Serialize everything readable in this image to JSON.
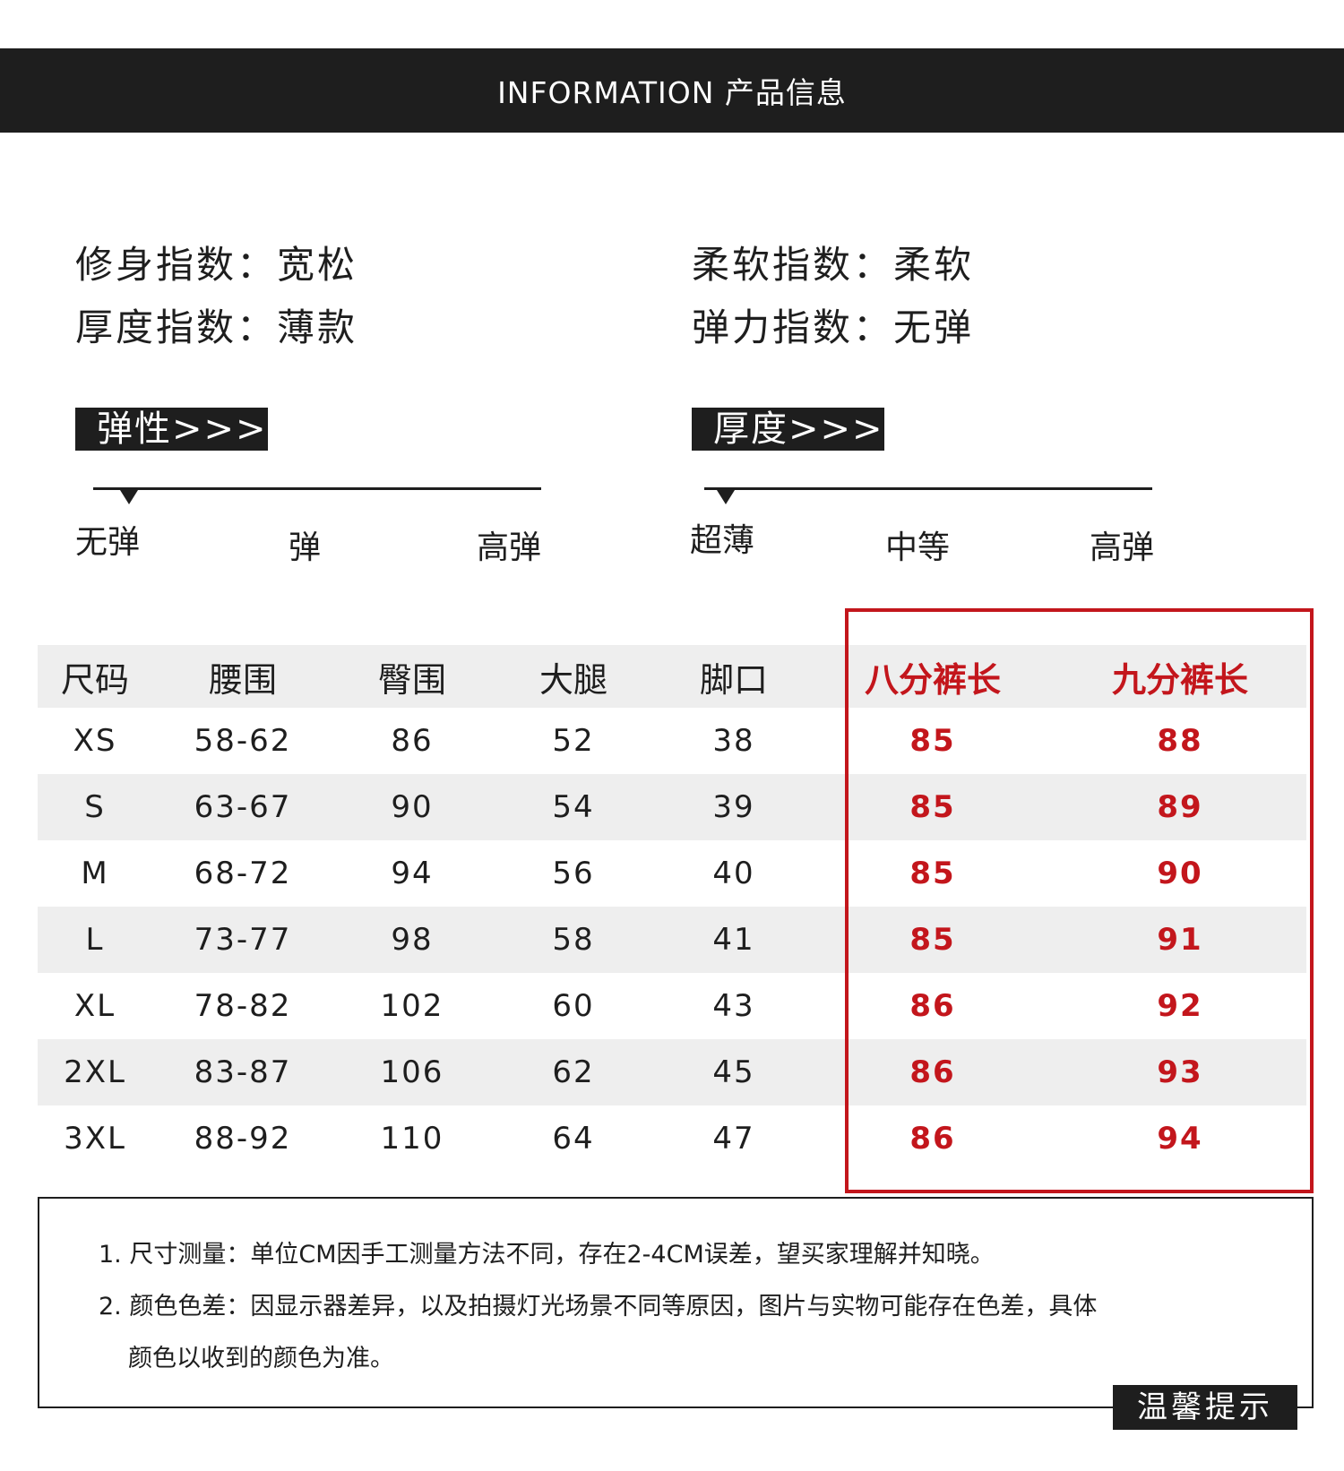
{
  "header": {
    "title": "INFORMATION 产品信息"
  },
  "attributes": {
    "fit": "修身指数：宽松",
    "thickness": "厚度指数：薄款",
    "softness": "柔软指数：柔软",
    "elasticity": "弹力指数：无弹"
  },
  "elasticity_scale": {
    "tag": "弹性>>>",
    "labels": [
      "无弹",
      "弹",
      "高弹"
    ],
    "selected": "无弹"
  },
  "thickness_scale": {
    "tag": "厚度>>>",
    "labels": [
      "超薄",
      "中等",
      "高弹"
    ],
    "selected": "超薄"
  },
  "size_table": {
    "headers": [
      "尺码",
      "腰围",
      "臀围",
      "大腿",
      "脚口",
      "八分裤长",
      "九分裤长"
    ],
    "rows": [
      [
        "XS",
        "58-62",
        "86",
        "52",
        "38",
        "85",
        "88"
      ],
      [
        "S",
        "63-67",
        "90",
        "54",
        "39",
        "85",
        "89"
      ],
      [
        "M",
        "68-72",
        "94",
        "56",
        "40",
        "85",
        "90"
      ],
      [
        "L",
        "73-77",
        "98",
        "58",
        "41",
        "85",
        "91"
      ],
      [
        "XL",
        "78-82",
        "102",
        "60",
        "43",
        "86",
        "92"
      ],
      [
        "2XL",
        "83-87",
        "106",
        "62",
        "45",
        "86",
        "93"
      ],
      [
        "3XL",
        "88-92",
        "110",
        "64",
        "47",
        "86",
        "94"
      ]
    ]
  },
  "notes": {
    "tag": "温馨提示",
    "line1": "1. 尺寸测量：单位CM因手工测量方法不同，存在2-4CM误差，望买家理解并知晓。",
    "line2": "2. 颜色色差：因显示器差异，以及拍摄灯光场景不同等原因，图片与实物可能存在色差，具体",
    "line3": "颜色以收到的颜色为准。"
  },
  "colors": {
    "dark": "#1e1e1e",
    "accent_red": "#c3161c",
    "row_alt": "#eeeeee"
  }
}
